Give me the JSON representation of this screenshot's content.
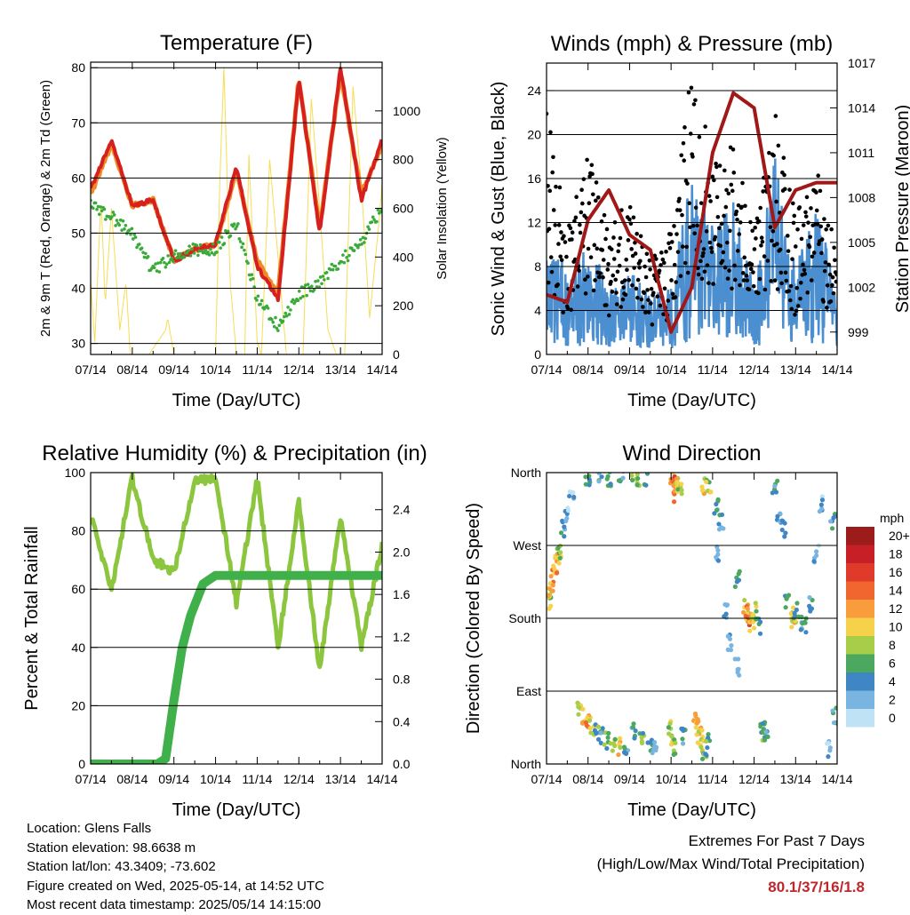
{
  "x_ticks": [
    "07/14",
    "08/14",
    "09/14",
    "10/14",
    "11/14",
    "12/14",
    "13/14",
    "14/14"
  ],
  "colors": {
    "t2m": "#d62020",
    "t9m": "#f08a24",
    "td": "#3aab3a",
    "solar": "#f6dd55",
    "wind": "#4c8fd0",
    "gust": "#000000",
    "pressure": "#a01818",
    "rh": "#8cc63f",
    "precip": "#3fb04a",
    "highlight": "#c0272d"
  },
  "chart_data": [
    {
      "id": "temperature",
      "type": "line",
      "title": "Temperature (F)",
      "xlabel": "Time (Day/UTC)",
      "ylabel": "2m & 9m T (Red, Orange) & 2m Td (Green)",
      "ylabel_right": "Solar Insolation (Yellow)",
      "x": [
        0,
        0.5,
        1,
        1.5,
        2,
        2.5,
        3,
        3.5,
        4,
        4.5,
        5,
        5.5,
        6,
        6.5,
        7
      ],
      "ylim": [
        28,
        81
      ],
      "y_ticks": [
        30,
        40,
        50,
        60,
        70,
        80
      ],
      "y2lim": [
        0,
        1200
      ],
      "y2_ticks": [
        0,
        200,
        400,
        600,
        800,
        1000
      ],
      "series": [
        {
          "key": "t2m",
          "values": [
            58,
            67,
            55,
            56,
            45,
            47,
            48,
            62,
            44,
            38,
            78,
            50,
            80,
            56,
            67
          ]
        },
        {
          "key": "t9m",
          "values": [
            57,
            66,
            55,
            56,
            45,
            47,
            48,
            61,
            45,
            39,
            78,
            51,
            79,
            57,
            66
          ]
        },
        {
          "key": "td",
          "values": [
            55,
            53,
            50,
            43,
            46,
            47,
            47,
            52,
            38,
            33,
            39,
            41,
            45,
            48,
            55
          ]
        },
        {
          "key": "solar",
          "axis": "right",
          "x": [
            0,
            0.1,
            0.25,
            0.35,
            0.5,
            0.7,
            0.85,
            0.95,
            1.05,
            1.2,
            1.4,
            1.6,
            1.8,
            1.85,
            2.0,
            2.1,
            2.2,
            2.4,
            2.5,
            2.7,
            2.9,
            3.0,
            3.1,
            3.2,
            3.35,
            3.5,
            3.6,
            3.7,
            3.8,
            4.0,
            4.1,
            4.3,
            4.5,
            4.7,
            4.9,
            5.0,
            5.1,
            5.3,
            5.5,
            5.7,
            5.9,
            6.0,
            6.1,
            6.3,
            6.5,
            6.7,
            6.9,
            7.0
          ],
          "values": [
            300,
            50,
            650,
            200,
            600,
            100,
            300,
            0,
            0,
            0,
            0,
            50,
            100,
            150,
            0,
            0,
            0,
            0,
            0,
            0,
            0,
            0,
            700,
            1180,
            300,
            0,
            0,
            0,
            820,
            50,
            0,
            800,
            400,
            0,
            0,
            0,
            0,
            1050,
            600,
            100,
            0,
            0,
            0,
            1100,
            700,
            150,
            500,
            700
          ]
        }
      ]
    },
    {
      "id": "winds",
      "type": "line",
      "title": "Winds (mph) & Pressure (mb)",
      "xlabel": "Time (Day/UTC)",
      "ylabel": "Sonic Wind & Gust (Blue, Black)",
      "ylabel_right": "Station Pressure (Maroon)",
      "x": [
        0,
        0.5,
        1,
        1.5,
        2,
        2.5,
        3,
        3.5,
        4,
        4.5,
        5,
        5.5,
        6,
        6.5,
        7
      ],
      "ylim": [
        0,
        26.5
      ],
      "y_ticks": [
        0,
        4,
        8,
        12,
        16,
        20,
        24
      ],
      "y2lim": [
        997.5,
        1017
      ],
      "y2_ticks": [
        999,
        1002,
        1005,
        1008,
        1011,
        1014,
        1017
      ],
      "series": [
        {
          "key": "wind",
          "values": [
            10,
            6,
            8,
            5,
            6,
            4,
            5,
            13,
            9,
            11,
            5,
            14,
            6,
            11,
            4
          ]
        },
        {
          "key": "gust",
          "values": [
            18,
            9,
            15,
            9,
            12,
            7,
            9,
            22,
            14,
            16,
            9,
            18,
            10,
            14,
            8
          ]
        },
        {
          "key": "pressure",
          "axis": "right",
          "values": [
            1001.5,
            1001,
            1006.5,
            1008.5,
            1005.5,
            1004.5,
            999,
            1002,
            1011,
            1015,
            1014,
            1006,
            1008.5,
            1009,
            1009
          ]
        }
      ]
    },
    {
      "id": "humidity",
      "type": "line",
      "title": "Relative Humidity (%) & Precipitation (in)",
      "xlabel": "Time (Day/UTC)",
      "ylabel": "Percent & Total Rainfall",
      "x": [
        0,
        0.5,
        1,
        1.5,
        2,
        2.5,
        3,
        3.5,
        4,
        4.5,
        5,
        5.5,
        6,
        6.5,
        7
      ],
      "ylim": [
        0,
        100
      ],
      "y_ticks": [
        0,
        20,
        40,
        60,
        80,
        100
      ],
      "y2lim": [
        0,
        2.75
      ],
      "y2_ticks": [
        0.0,
        0.4,
        0.8,
        1.2,
        1.6,
        2.0,
        2.4
      ],
      "series": [
        {
          "key": "rh",
          "values": [
            85,
            60,
            98,
            70,
            66,
            97,
            98,
            55,
            98,
            40,
            90,
            32,
            85,
            40,
            75
          ]
        },
        {
          "key": "precip",
          "axis": "right",
          "x": [
            0,
            1,
            1.6,
            1.8,
            2.0,
            2.2,
            2.4,
            2.5,
            2.7,
            3.0,
            4,
            5,
            6,
            7
          ],
          "values": [
            0,
            0,
            0,
            0.05,
            0.6,
            1.1,
            1.4,
            1.5,
            1.7,
            1.78,
            1.78,
            1.78,
            1.78,
            1.78
          ]
        }
      ]
    },
    {
      "id": "direction",
      "type": "scatter",
      "title": "Wind Direction",
      "xlabel": "Time (Day/UTC)",
      "ylabel": "Direction (Colored By Speed)",
      "y_labels": [
        "North",
        "East",
        "South",
        "West",
        "North"
      ],
      "legend_title": "mph",
      "legend_labels": [
        "20+",
        "18",
        "16",
        "14",
        "12",
        "10",
        "8",
        "6",
        "4",
        "2",
        "0"
      ],
      "legend_colors": [
        "#9c1c1c",
        "#c62026",
        "#e03a2a",
        "#f0662e",
        "#f99c3c",
        "#f5d24a",
        "#a8cd49",
        "#4ca85e",
        "#3f86c4",
        "#7ab5e1",
        "#bfe2f5"
      ],
      "points": [
        {
          "x": 0.05,
          "dir": 200,
          "mph": 8
        },
        {
          "x": 0.1,
          "dir": 215,
          "mph": 10
        },
        {
          "x": 0.15,
          "dir": 230,
          "mph": 12
        },
        {
          "x": 0.2,
          "dir": 245,
          "mph": 12
        },
        {
          "x": 0.25,
          "dir": 255,
          "mph": 10
        },
        {
          "x": 0.3,
          "dir": 265,
          "mph": 8
        },
        {
          "x": 0.4,
          "dir": 290,
          "mph": 4
        },
        {
          "x": 0.5,
          "dir": 310,
          "mph": 2
        },
        {
          "x": 0.6,
          "dir": 330,
          "mph": 2
        },
        {
          "x": 0.8,
          "dir": 70,
          "mph": 8
        },
        {
          "x": 0.9,
          "dir": 60,
          "mph": 10
        },
        {
          "x": 1.0,
          "dir": 50,
          "mph": 12
        },
        {
          "x": 1.1,
          "dir": 45,
          "mph": 8
        },
        {
          "x": 1.2,
          "dir": 40,
          "mph": 6
        },
        {
          "x": 1.3,
          "dir": 35,
          "mph": 4
        },
        {
          "x": 1.45,
          "dir": 30,
          "mph": 6
        },
        {
          "x": 1.6,
          "dir": 25,
          "mph": 8
        },
        {
          "x": 1.75,
          "dir": 22,
          "mph": 10
        },
        {
          "x": 1.9,
          "dir": 20,
          "mph": 4
        },
        {
          "x": 1.0,
          "dir": 350,
          "mph": 6
        },
        {
          "x": 1.3,
          "dir": 355,
          "mph": 4
        },
        {
          "x": 1.5,
          "dir": 352,
          "mph": 6
        },
        {
          "x": 1.8,
          "dir": 357,
          "mph": 4
        },
        {
          "x": 2.1,
          "dir": 358,
          "mph": 8
        },
        {
          "x": 2.2,
          "dir": 350,
          "mph": 6
        },
        {
          "x": 2.4,
          "dir": 353,
          "mph": 4
        },
        {
          "x": 2.1,
          "dir": 40,
          "mph": 4
        },
        {
          "x": 2.3,
          "dir": 30,
          "mph": 6
        },
        {
          "x": 2.5,
          "dir": 25,
          "mph": 4
        },
        {
          "x": 2.6,
          "dir": 20,
          "mph": 2
        },
        {
          "x": 3.0,
          "dir": 355,
          "mph": 12
        },
        {
          "x": 3.05,
          "dir": 345,
          "mph": 14
        },
        {
          "x": 3.1,
          "dir": 335,
          "mph": 12
        },
        {
          "x": 3.15,
          "dir": 350,
          "mph": 10
        },
        {
          "x": 3.2,
          "dir": 340,
          "mph": 8
        },
        {
          "x": 3.0,
          "dir": 45,
          "mph": 8
        },
        {
          "x": 3.05,
          "dir": 30,
          "mph": 10
        },
        {
          "x": 3.1,
          "dir": 20,
          "mph": 6
        },
        {
          "x": 3.3,
          "dir": 35,
          "mph": 4
        },
        {
          "x": 3.6,
          "dir": 55,
          "mph": 10
        },
        {
          "x": 3.65,
          "dir": 45,
          "mph": 12
        },
        {
          "x": 3.7,
          "dir": 35,
          "mph": 10
        },
        {
          "x": 3.75,
          "dir": 25,
          "mph": 8
        },
        {
          "x": 3.8,
          "dir": 15,
          "mph": 6
        },
        {
          "x": 3.9,
          "dir": 30,
          "mph": 6
        },
        {
          "x": 3.8,
          "dir": 345,
          "mph": 10
        },
        {
          "x": 3.9,
          "dir": 340,
          "mph": 8
        },
        {
          "x": 4.1,
          "dir": 320,
          "mph": 4
        },
        {
          "x": 4.1,
          "dir": 260,
          "mph": 2
        },
        {
          "x": 4.2,
          "dir": 300,
          "mph": 4
        },
        {
          "x": 4.3,
          "dir": 190,
          "mph": 2
        },
        {
          "x": 4.4,
          "dir": 150,
          "mph": 2
        },
        {
          "x": 4.6,
          "dir": 120,
          "mph": 2
        },
        {
          "x": 4.6,
          "dir": 230,
          "mph": 4
        },
        {
          "x": 4.8,
          "dir": 195,
          "mph": 10
        },
        {
          "x": 4.85,
          "dir": 185,
          "mph": 12
        },
        {
          "x": 4.9,
          "dir": 180,
          "mph": 14
        },
        {
          "x": 4.95,
          "dir": 175,
          "mph": 10
        },
        {
          "x": 5.0,
          "dir": 190,
          "mph": 8
        },
        {
          "x": 5.1,
          "dir": 170,
          "mph": 6
        },
        {
          "x": 5.2,
          "dir": 50,
          "mph": 6
        },
        {
          "x": 5.25,
          "dir": 40,
          "mph": 8
        },
        {
          "x": 5.3,
          "dir": 30,
          "mph": 4
        },
        {
          "x": 5.5,
          "dir": 340,
          "mph": 4
        },
        {
          "x": 5.6,
          "dir": 300,
          "mph": 2
        },
        {
          "x": 5.7,
          "dir": 290,
          "mph": 4
        },
        {
          "x": 5.8,
          "dir": 200,
          "mph": 6
        },
        {
          "x": 5.9,
          "dir": 185,
          "mph": 8
        },
        {
          "x": 5.95,
          "dir": 178,
          "mph": 10
        },
        {
          "x": 6.0,
          "dir": 190,
          "mph": 6
        },
        {
          "x": 6.1,
          "dir": 175,
          "mph": 4
        },
        {
          "x": 6.2,
          "dir": 170,
          "mph": 6
        },
        {
          "x": 6.35,
          "dir": 195,
          "mph": 4
        },
        {
          "x": 6.5,
          "dir": 260,
          "mph": 2
        },
        {
          "x": 6.6,
          "dir": 320,
          "mph": 2
        },
        {
          "x": 6.8,
          "dir": 20,
          "mph": 2
        },
        {
          "x": 6.9,
          "dir": 300,
          "mph": 4
        },
        {
          "x": 6.95,
          "dir": 60,
          "mph": 4
        }
      ]
    }
  ],
  "info": {
    "location": "Location: Glens Falls",
    "elevation": "Station elevation: 98.6638 m",
    "latlon": "Station lat/lon: 43.3409; -73.602",
    "created": "Figure created on Wed, 2025-05-14, at 14:52 UTC",
    "recent": "Most recent data timestamp: 2025/05/14 14:15:00"
  },
  "extremes": {
    "title": "Extremes For Past 7 Days",
    "subtitle": "(High/Low/Max Wind/Total Precipitation)",
    "values": "80.1/37/16/1.8"
  }
}
